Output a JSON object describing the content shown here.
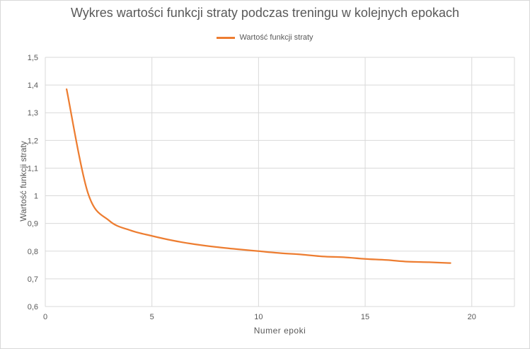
{
  "chart_data": {
    "type": "line",
    "title": "Wykres wartości funkcji straty podczas treningu w kolejnych epokach",
    "xlabel": "Numer epoki",
    "ylabel": "Wartość funkcji straty",
    "xlim": [
      0,
      22
    ],
    "ylim": [
      0.6,
      1.5
    ],
    "x_ticks": [
      "0",
      "5",
      "10",
      "15",
      "20"
    ],
    "y_ticks": [
      "0,6",
      "0,7",
      "0,8",
      "0,9",
      "1",
      "1,1",
      "1,2",
      "1,3",
      "1,4",
      "1,5"
    ],
    "grid": "vertical and horizontal",
    "legend_position": "top",
    "series": [
      {
        "name": "Wartość funkcji straty",
        "color": "#ed7d31",
        "x": [
          1,
          2,
          3,
          4,
          5,
          6,
          7,
          8,
          9,
          10,
          11,
          12,
          13,
          14,
          15,
          16,
          17,
          18,
          19
        ],
        "y": [
          1.385,
          1.01,
          0.91,
          0.875,
          0.855,
          0.838,
          0.825,
          0.815,
          0.807,
          0.8,
          0.793,
          0.788,
          0.781,
          0.778,
          0.772,
          0.768,
          0.762,
          0.76,
          0.757
        ]
      }
    ]
  }
}
